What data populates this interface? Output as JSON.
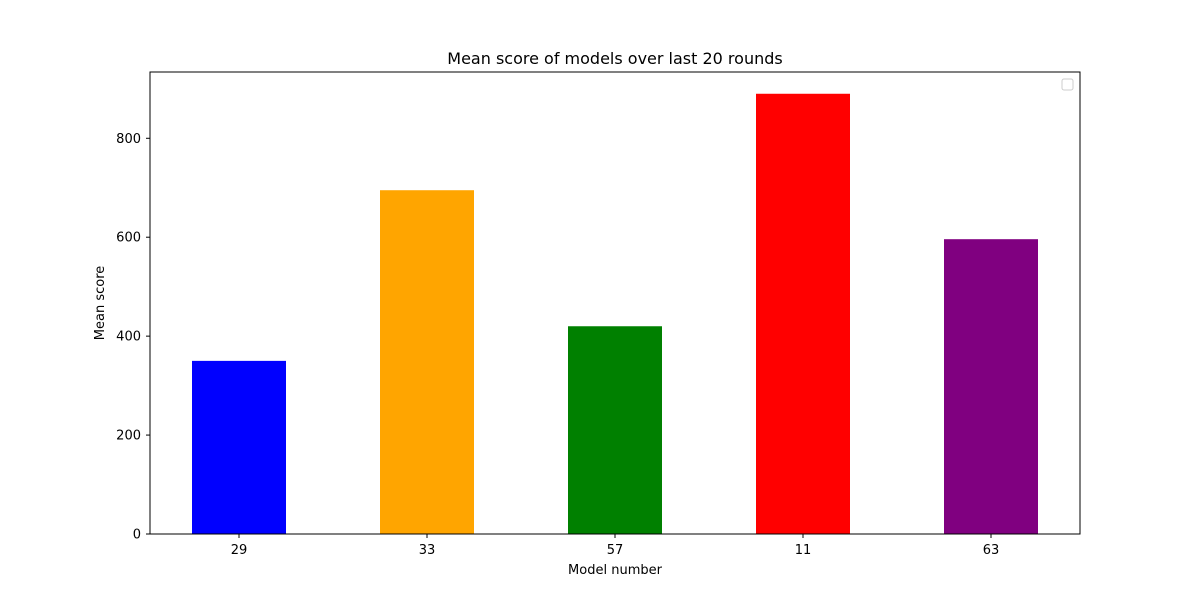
{
  "chart_data": {
    "type": "bar",
    "title": "Mean score of models over last 20 rounds",
    "xlabel": "Model number",
    "ylabel": "Mean score",
    "categories": [
      "29",
      "33",
      "57",
      "11",
      "63"
    ],
    "values": [
      350,
      695,
      420,
      890,
      596
    ],
    "colors": [
      "#0000ff",
      "#ffa500",
      "#008000",
      "#ff0000",
      "#800080"
    ],
    "ylim": [
      0,
      934
    ],
    "yticks": [
      0,
      200,
      400,
      600,
      800
    ],
    "grid": false,
    "legend": {
      "placement": "top-right",
      "entries": []
    }
  }
}
